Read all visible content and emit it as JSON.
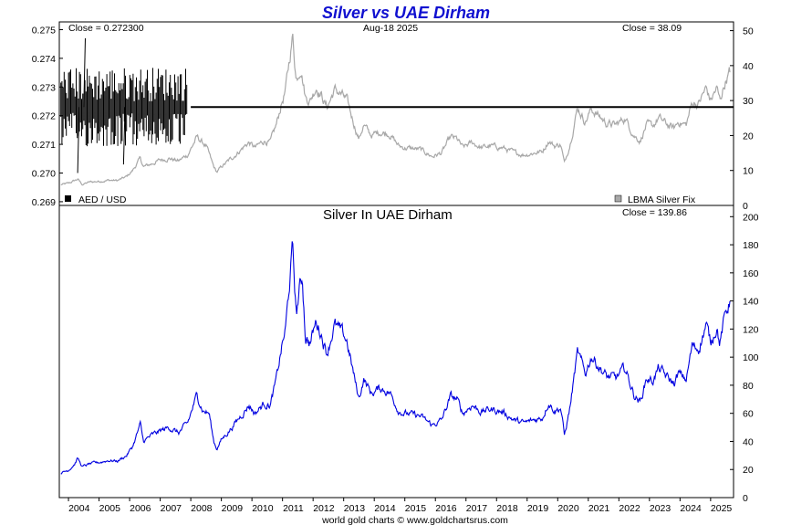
{
  "chart_data": [
    {
      "type": "line",
      "title": "Silver vs UAE Dirham",
      "date": "Aug-18  2025",
      "close_left": "Close = 0.272300",
      "close_right": "Close = 38.09",
      "left_axis": {
        "ylim": [
          0.26887,
          0.27527
        ],
        "ticks": [
          "0.269",
          "0.270",
          "0.271",
          "0.272",
          "0.273",
          "0.274",
          "0.275"
        ]
      },
      "right_axis": {
        "ylim": [
          0,
          52.5
        ],
        "ticks": [
          "0",
          "10",
          "20",
          "30",
          "40",
          "50"
        ]
      },
      "legend": [
        {
          "name": "AED / USD",
          "color": "#000000"
        },
        {
          "name": "LBMA Silver Fix",
          "color": "#a8a8a8"
        }
      ],
      "series": [
        {
          "name": "AED / USD",
          "axis": "left",
          "color": "#000000",
          "stable_value": 0.2723,
          "stable_from": 2008.0,
          "volatile_period": [
            2003.75,
            2007.9
          ],
          "volatile_range": [
            0.27,
            0.2747
          ]
        },
        {
          "name": "LBMA Silver Fix",
          "axis": "right",
          "color": "#a8a8a8",
          "points": [
            [
              2003.75,
              5.9
            ],
            [
              2004.0,
              6.3
            ],
            [
              2004.3,
              7.5
            ],
            [
              2004.45,
              6.0
            ],
            [
              2004.7,
              6.7
            ],
            [
              2005.0,
              6.9
            ],
            [
              2005.3,
              7.2
            ],
            [
              2005.6,
              7.1
            ],
            [
              2005.9,
              8.2
            ],
            [
              2006.1,
              10.0
            ],
            [
              2006.35,
              13.5
            ],
            [
              2006.45,
              11.0
            ],
            [
              2006.7,
              11.8
            ],
            [
              2007.0,
              13.0
            ],
            [
              2007.3,
              13.5
            ],
            [
              2007.6,
              12.7
            ],
            [
              2007.9,
              14.5
            ],
            [
              2008.2,
              19.5
            ],
            [
              2008.5,
              17.0
            ],
            [
              2008.75,
              11.0
            ],
            [
              2008.85,
              9.5
            ],
            [
              2009.0,
              11.0
            ],
            [
              2009.4,
              14.0
            ],
            [
              2009.7,
              16.5
            ],
            [
              2009.9,
              18.0
            ],
            [
              2010.1,
              16.5
            ],
            [
              2010.4,
              18.5
            ],
            [
              2010.6,
              18.0
            ],
            [
              2010.8,
              23.0
            ],
            [
              2010.95,
              28.5
            ],
            [
              2011.1,
              33.0
            ],
            [
              2011.33,
              48.5
            ],
            [
              2011.45,
              36.0
            ],
            [
              2011.6,
              40.0
            ],
            [
              2011.75,
              31.0
            ],
            [
              2011.9,
              30.0
            ],
            [
              2012.1,
              34.0
            ],
            [
              2012.25,
              32.0
            ],
            [
              2012.45,
              28.0
            ],
            [
              2012.7,
              33.0
            ],
            [
              2012.9,
              32.0
            ],
            [
              2013.1,
              30.0
            ],
            [
              2013.35,
              23.0
            ],
            [
              2013.5,
              19.0
            ],
            [
              2013.65,
              23.0
            ],
            [
              2013.9,
              20.0
            ],
            [
              2014.2,
              21.0
            ],
            [
              2014.5,
              20.5
            ],
            [
              2014.8,
              17.0
            ],
            [
              2015.0,
              16.5
            ],
            [
              2015.5,
              16.0
            ],
            [
              2015.9,
              14.0
            ],
            [
              2016.2,
              15.0
            ],
            [
              2016.5,
              19.5
            ],
            [
              2016.7,
              19.0
            ],
            [
              2016.9,
              16.5
            ],
            [
              2017.2,
              18.0
            ],
            [
              2017.5,
              16.5
            ],
            [
              2017.8,
              17.0
            ],
            [
              2018.2,
              16.5
            ],
            [
              2018.6,
              15.0
            ],
            [
              2018.9,
              14.5
            ],
            [
              2019.2,
              15.0
            ],
            [
              2019.5,
              15.5
            ],
            [
              2019.7,
              18.5
            ],
            [
              2019.9,
              17.0
            ],
            [
              2020.1,
              17.5
            ],
            [
              2020.22,
              12.0
            ],
            [
              2020.4,
              17.5
            ],
            [
              2020.55,
              24.0
            ],
            [
              2020.65,
              28.0
            ],
            [
              2020.9,
              24.0
            ],
            [
              2021.1,
              27.5
            ],
            [
              2021.3,
              26.0
            ],
            [
              2021.6,
              23.5
            ],
            [
              2021.9,
              23.0
            ],
            [
              2022.2,
              25.0
            ],
            [
              2022.5,
              20.0
            ],
            [
              2022.7,
              18.5
            ],
            [
              2022.9,
              23.0
            ],
            [
              2023.1,
              22.5
            ],
            [
              2023.3,
              25.0
            ],
            [
              2023.6,
              23.0
            ],
            [
              2023.8,
              22.0
            ],
            [
              2023.95,
              24.0
            ],
            [
              2024.2,
              23.0
            ],
            [
              2024.4,
              29.5
            ],
            [
              2024.6,
              29.0
            ],
            [
              2024.85,
              33.5
            ],
            [
              2025.0,
              30.0
            ],
            [
              2025.2,
              33.5
            ],
            [
              2025.3,
              30.0
            ],
            [
              2025.5,
              36.0
            ],
            [
              2025.63,
              38.09
            ]
          ]
        }
      ]
    },
    {
      "type": "line",
      "title": "Silver In UAE Dirham",
      "close": "Close = 139.86",
      "ylim": [
        0,
        208
      ],
      "y_ticks": [
        "0",
        "20",
        "40",
        "60",
        "80",
        "100",
        "120",
        "140",
        "160",
        "180",
        "200"
      ],
      "x_ticks": [
        "2004",
        "2005",
        "2006",
        "2007",
        "2008",
        "2009",
        "2010",
        "2011",
        "2012",
        "2013",
        "2014",
        "2015",
        "2016",
        "2017",
        "2018",
        "2019",
        "2020",
        "2021",
        "2022",
        "2023",
        "2024",
        "2025"
      ],
      "series": [
        {
          "name": "Silver In UAE Dirham",
          "color": "#0000e0",
          "points": [
            [
              2003.75,
              17.5
            ],
            [
              2004.0,
              19.5
            ],
            [
              2004.2,
              24.0
            ],
            [
              2004.3,
              28.0
            ],
            [
              2004.45,
              22.0
            ],
            [
              2004.7,
              24.0
            ],
            [
              2005.0,
              25.0
            ],
            [
              2005.3,
              26.5
            ],
            [
              2005.6,
              26.0
            ],
            [
              2005.9,
              30.0
            ],
            [
              2006.1,
              36.5
            ],
            [
              2006.35,
              52.0
            ],
            [
              2006.45,
              40.0
            ],
            [
              2006.7,
              44.0
            ],
            [
              2007.0,
              47.5
            ],
            [
              2007.3,
              50.0
            ],
            [
              2007.6,
              46.0
            ],
            [
              2007.9,
              53.0
            ],
            [
              2008.2,
              73.0
            ],
            [
              2008.4,
              62.0
            ],
            [
              2008.6,
              60.0
            ],
            [
              2008.75,
              40.0
            ],
            [
              2008.85,
              35.0
            ],
            [
              2009.0,
              41.0
            ],
            [
              2009.4,
              51.5
            ],
            [
              2009.7,
              60.0
            ],
            [
              2009.9,
              66.0
            ],
            [
              2010.1,
              60.0
            ],
            [
              2010.4,
              67.0
            ],
            [
              2010.6,
              66.0
            ],
            [
              2010.8,
              84.0
            ],
            [
              2010.95,
              104.0
            ],
            [
              2011.1,
              120.0
            ],
            [
              2011.33,
              178.0
            ],
            [
              2011.45,
              130.0
            ],
            [
              2011.55,
              148.0
            ],
            [
              2011.65,
              156.0
            ],
            [
              2011.75,
              115.0
            ],
            [
              2011.9,
              110.0
            ],
            [
              2012.1,
              125.0
            ],
            [
              2012.25,
              118.0
            ],
            [
              2012.45,
              103.0
            ],
            [
              2012.7,
              123.0
            ],
            [
              2012.9,
              118.0
            ],
            [
              2013.1,
              112.0
            ],
            [
              2013.35,
              85.0
            ],
            [
              2013.5,
              70.0
            ],
            [
              2013.65,
              85.0
            ],
            [
              2013.9,
              74.0
            ],
            [
              2014.2,
              78.0
            ],
            [
              2014.5,
              75.0
            ],
            [
              2014.8,
              62.0
            ],
            [
              2015.0,
              60.0
            ],
            [
              2015.5,
              58.0
            ],
            [
              2015.9,
              51.5
            ],
            [
              2016.2,
              55.0
            ],
            [
              2016.5,
              72.0
            ],
            [
              2016.7,
              70.0
            ],
            [
              2016.9,
              60.0
            ],
            [
              2017.2,
              66.0
            ],
            [
              2017.5,
              61.0
            ],
            [
              2017.8,
              63.0
            ],
            [
              2018.2,
              61.0
            ],
            [
              2018.6,
              55.0
            ],
            [
              2018.9,
              53.0
            ],
            [
              2019.2,
              55.0
            ],
            [
              2019.5,
              57.0
            ],
            [
              2019.7,
              68.0
            ],
            [
              2019.9,
              62.0
            ],
            [
              2020.1,
              64.0
            ],
            [
              2020.22,
              44.0
            ],
            [
              2020.4,
              64.0
            ],
            [
              2020.55,
              88.0
            ],
            [
              2020.65,
              103.0
            ],
            [
              2020.9,
              88.0
            ],
            [
              2021.1,
              101.0
            ],
            [
              2021.3,
              95.0
            ],
            [
              2021.6,
              86.0
            ],
            [
              2021.9,
              85.0
            ],
            [
              2022.2,
              92.0
            ],
            [
              2022.5,
              73.0
            ],
            [
              2022.7,
              68.0
            ],
            [
              2022.9,
              85.0
            ],
            [
              2023.1,
              83.0
            ],
            [
              2023.3,
              92.0
            ],
            [
              2023.6,
              85.0
            ],
            [
              2023.8,
              81.0
            ],
            [
              2023.95,
              88.0
            ],
            [
              2024.2,
              84.0
            ],
            [
              2024.4,
              108.0
            ],
            [
              2024.6,
              106.0
            ],
            [
              2024.85,
              123.0
            ],
            [
              2025.0,
              110.0
            ],
            [
              2025.2,
              123.0
            ],
            [
              2025.3,
              110.0
            ],
            [
              2025.5,
              132.0
            ],
            [
              2025.63,
              139.86
            ]
          ]
        }
      ]
    }
  ],
  "footer": {
    "credit": "world gold charts © www.goldchartsrus.com"
  }
}
